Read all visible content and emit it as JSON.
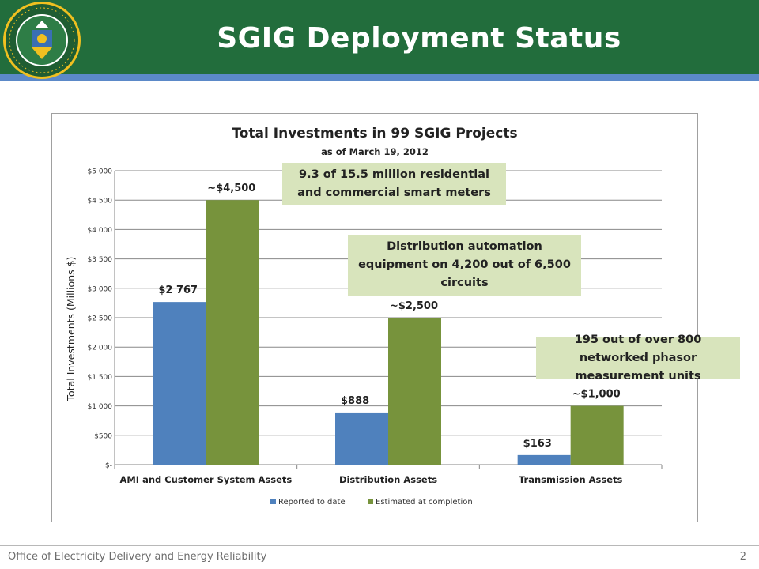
{
  "slide": {
    "title": "SGIG Deployment Status",
    "footer": "Office of Electricity Delivery and Energy Reliability",
    "page_number": "2",
    "seal_text": "DEPARTMENT OF ENERGY · UNITED STATES OF AMERICA"
  },
  "colors": {
    "header": "#226d3c",
    "stripe": "#5b89c8",
    "reported": "#4f81bd",
    "estimated": "#77933c",
    "callout": "#d8e4bc"
  },
  "callouts": [
    "9.3 of 15.5 million residential and commercial smart meters",
    "Distribution automation equipment on 4,200 out of 6,500 circuits",
    "195 out of over 800 networked phasor measurement units"
  ],
  "chart_data": {
    "type": "bar",
    "title": "Total Investments in 99 SGIG Projects",
    "subtitle": "as of March 19, 2012",
    "ylabel": "Total Investments (Millions $)",
    "xlabel": "",
    "ylim": [
      0,
      5000
    ],
    "yticks": [
      0,
      500,
      1000,
      1500,
      2000,
      2500,
      3000,
      3500,
      4000,
      4500,
      5000
    ],
    "ytick_labels": [
      "$-",
      "$500",
      "$1 000",
      "$1 500",
      "$2 000",
      "$2 500",
      "$3 000",
      "$3 500",
      "$4 000",
      "$4 500",
      "$5 000"
    ],
    "grid": true,
    "legend_position": "bottom",
    "categories": [
      "AMI and Customer System Assets",
      "Distribution Assets",
      "Transmission Assets"
    ],
    "series": [
      {
        "name": "Reported to date",
        "values": [
          2767,
          888,
          163
        ],
        "labels": [
          "$2 767",
          "$888",
          "$163"
        ]
      },
      {
        "name": "Estimated at completion",
        "values": [
          4500,
          2500,
          1000
        ],
        "labels": [
          "~$4,500",
          "~$2,500",
          "~$1,000"
        ]
      }
    ]
  }
}
